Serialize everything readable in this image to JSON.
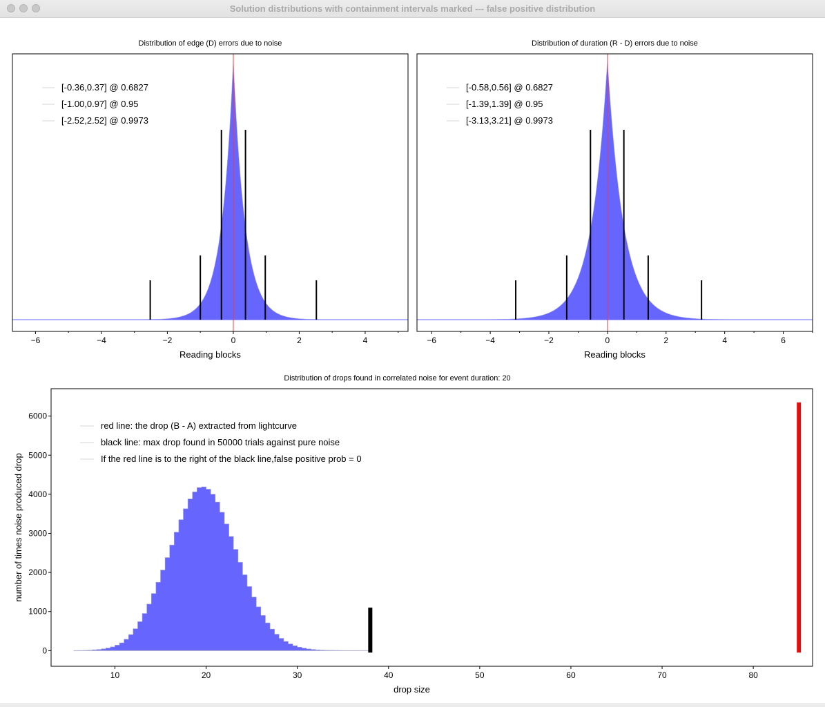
{
  "window": {
    "title": "Solution distributions with containment intervals marked --- false positive distribution"
  },
  "chart_data": [
    {
      "type": "bar",
      "title": "Distribution of edge (D) errors due to noise",
      "xlabel": "Reading blocks",
      "ylabel": "",
      "xlim": [
        -6.7,
        5.3
      ],
      "xticks": [
        -6,
        -4,
        -2,
        0,
        2,
        4
      ],
      "legend_placement": "top-left",
      "legend": [
        "[-0.36,0.37] @ 0.6827",
        "[-1.00,0.97] @ 0.95",
        "[-2.52,2.52] @ 0.9973"
      ],
      "zero_line_x": 0,
      "intervals": [
        {
          "low": -0.36,
          "high": 0.37,
          "level": 0.6827
        },
        {
          "low": -1.0,
          "high": 0.97,
          "level": 0.95
        },
        {
          "low": -2.52,
          "high": 2.52,
          "level": 0.9973
        }
      ],
      "distribution_shape": {
        "center": 0,
        "width": 0.36
      },
      "colors": {
        "fill": "#6666ff",
        "interval": "#000000",
        "zero_line": "#ff3333"
      }
    },
    {
      "type": "bar",
      "title": "Distribution of duration (R - D) errors due to noise",
      "xlabel": "Reading blocks",
      "ylabel": "",
      "xlim": [
        -6.5,
        7.0
      ],
      "xticks": [
        -6,
        -4,
        -2,
        0,
        2,
        4,
        6
      ],
      "legend_placement": "top-left",
      "legend": [
        "[-0.58,0.56] @ 0.6827",
        "[-1.39,1.39] @ 0.95",
        "[-3.13,3.21] @ 0.9973"
      ],
      "zero_line_x": 0,
      "intervals": [
        {
          "low": -0.58,
          "high": 0.56,
          "level": 0.6827
        },
        {
          "low": -1.39,
          "high": 1.39,
          "level": 0.95
        },
        {
          "low": -3.13,
          "high": 3.21,
          "level": 0.9973
        }
      ],
      "distribution_shape": {
        "center": 0,
        "width": 0.55
      },
      "colors": {
        "fill": "#6666ff",
        "interval": "#000000",
        "zero_line": "#ff3333"
      }
    },
    {
      "type": "bar",
      "title": "Distribution of drops found in correlated noise for event duration: 20",
      "xlabel": "drop size",
      "ylabel": "number of times noise produced drop",
      "xlim": [
        3,
        86.5
      ],
      "ylim": [
        -400,
        6700
      ],
      "xticks": [
        10,
        20,
        30,
        40,
        50,
        60,
        70,
        80
      ],
      "yticks": [
        0,
        1000,
        2000,
        3000,
        4000,
        5000,
        6000
      ],
      "legend_placement": "top-left",
      "legend": [
        "red line: the drop (B - A) extracted from lightcurve",
        "black line: max drop found in 50000 trials against pure noise",
        "If the red line is to the right of the black line,false positive prob = 0"
      ],
      "histogram": {
        "x_start": 5.5,
        "bin_width": 0.5,
        "counts": [
          2,
          4,
          7,
          12,
          20,
          30,
          45,
          65,
          95,
          140,
          200,
          290,
          410,
          560,
          740,
          950,
          1190,
          1460,
          1750,
          2060,
          2380,
          2700,
          3030,
          3350,
          3630,
          3880,
          4060,
          4170,
          4190,
          4130,
          4000,
          3800,
          3540,
          3240,
          2920,
          2590,
          2260,
          1940,
          1640,
          1370,
          1120,
          900,
          710,
          550,
          420,
          315,
          235,
          172,
          124,
          88,
          62,
          43,
          30,
          21,
          14,
          10,
          7,
          5,
          3,
          2,
          1,
          1
        ]
      },
      "max_noise_drop": {
        "x": 38,
        "height": 1100
      },
      "observed_drop": {
        "x": 85,
        "height": 6350
      },
      "colors": {
        "fill": "#6666ff",
        "max_noise_drop": "#000000",
        "observed_drop": "#e01010"
      }
    }
  ]
}
